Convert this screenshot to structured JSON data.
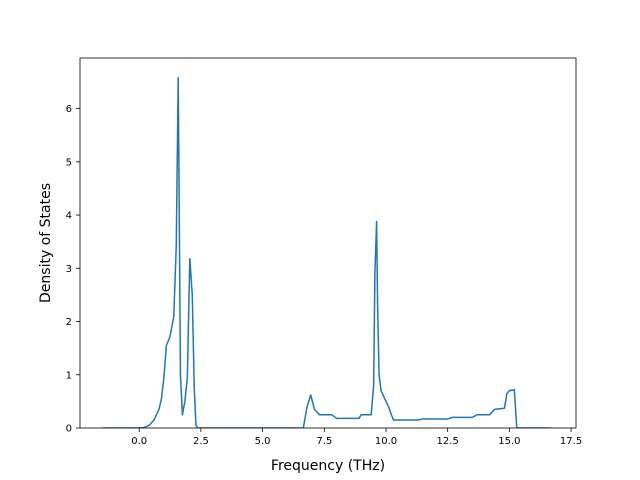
{
  "chart_data": {
    "type": "line",
    "title": "",
    "xlabel": "Frequency (THz)",
    "ylabel": "Density of States",
    "xlim": [
      -2.4,
      17.7
    ],
    "ylim": [
      0,
      6.95
    ],
    "xticks": [
      0.0,
      2.5,
      5.0,
      7.5,
      10.0,
      12.5,
      15.0,
      17.5
    ],
    "xtick_labels": [
      "0.0",
      "2.5",
      "5.0",
      "7.5",
      "10.0",
      "12.5",
      "15.0",
      "17.5"
    ],
    "yticks": [
      0,
      1,
      2,
      3,
      4,
      5,
      6
    ],
    "ytick_labels": [
      "0",
      "1",
      "2",
      "3",
      "4",
      "5",
      "6"
    ],
    "grid": false,
    "legend": "none",
    "series": [
      {
        "color": "#1f77b4",
        "x": [
          -1.5,
          0.0,
          0.2,
          0.4,
          0.6,
          0.8,
          0.9,
          1.0,
          1.1,
          1.25,
          1.4,
          1.5,
          1.58,
          1.62,
          1.67,
          1.75,
          1.85,
          1.95,
          2.05,
          2.15,
          2.23,
          2.3,
          2.38,
          2.45,
          3.0,
          6.0,
          6.65,
          6.8,
          6.95,
          7.1,
          7.3,
          7.5,
          7.8,
          8.0,
          8.6,
          8.9,
          9.0,
          9.4,
          9.5,
          9.55,
          9.62,
          9.66,
          9.72,
          9.8,
          9.95,
          10.1,
          10.3,
          10.5,
          11.3,
          11.5,
          12.5,
          12.7,
          13.5,
          13.7,
          14.2,
          14.4,
          14.8,
          14.9,
          15.0,
          15.2,
          15.3,
          16.7
        ],
        "y": [
          0,
          0,
          0.01,
          0.05,
          0.15,
          0.35,
          0.55,
          0.95,
          1.55,
          1.72,
          2.1,
          3.4,
          6.58,
          4.2,
          1.0,
          0.25,
          0.5,
          0.95,
          3.18,
          2.5,
          0.75,
          0.05,
          0.0,
          0.0,
          0,
          0,
          0.0,
          0.4,
          0.62,
          0.35,
          0.25,
          0.25,
          0.25,
          0.18,
          0.18,
          0.18,
          0.25,
          0.25,
          0.8,
          2.9,
          3.88,
          2.3,
          1.0,
          0.7,
          0.55,
          0.4,
          0.15,
          0.15,
          0.15,
          0.17,
          0.17,
          0.2,
          0.2,
          0.25,
          0.25,
          0.35,
          0.37,
          0.65,
          0.7,
          0.72,
          0.0,
          0.0
        ]
      }
    ]
  }
}
